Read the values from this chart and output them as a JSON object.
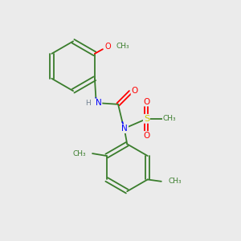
{
  "background_color": "#ebebeb",
  "bond_color": "#3a7d2c",
  "N_color": "#0000ff",
  "O_color": "#ff0000",
  "S_color": "#cccc00",
  "figsize": [
    3.0,
    3.0
  ],
  "dpi": 100,
  "xlim": [
    0,
    10
  ],
  "ylim": [
    0,
    10
  ]
}
